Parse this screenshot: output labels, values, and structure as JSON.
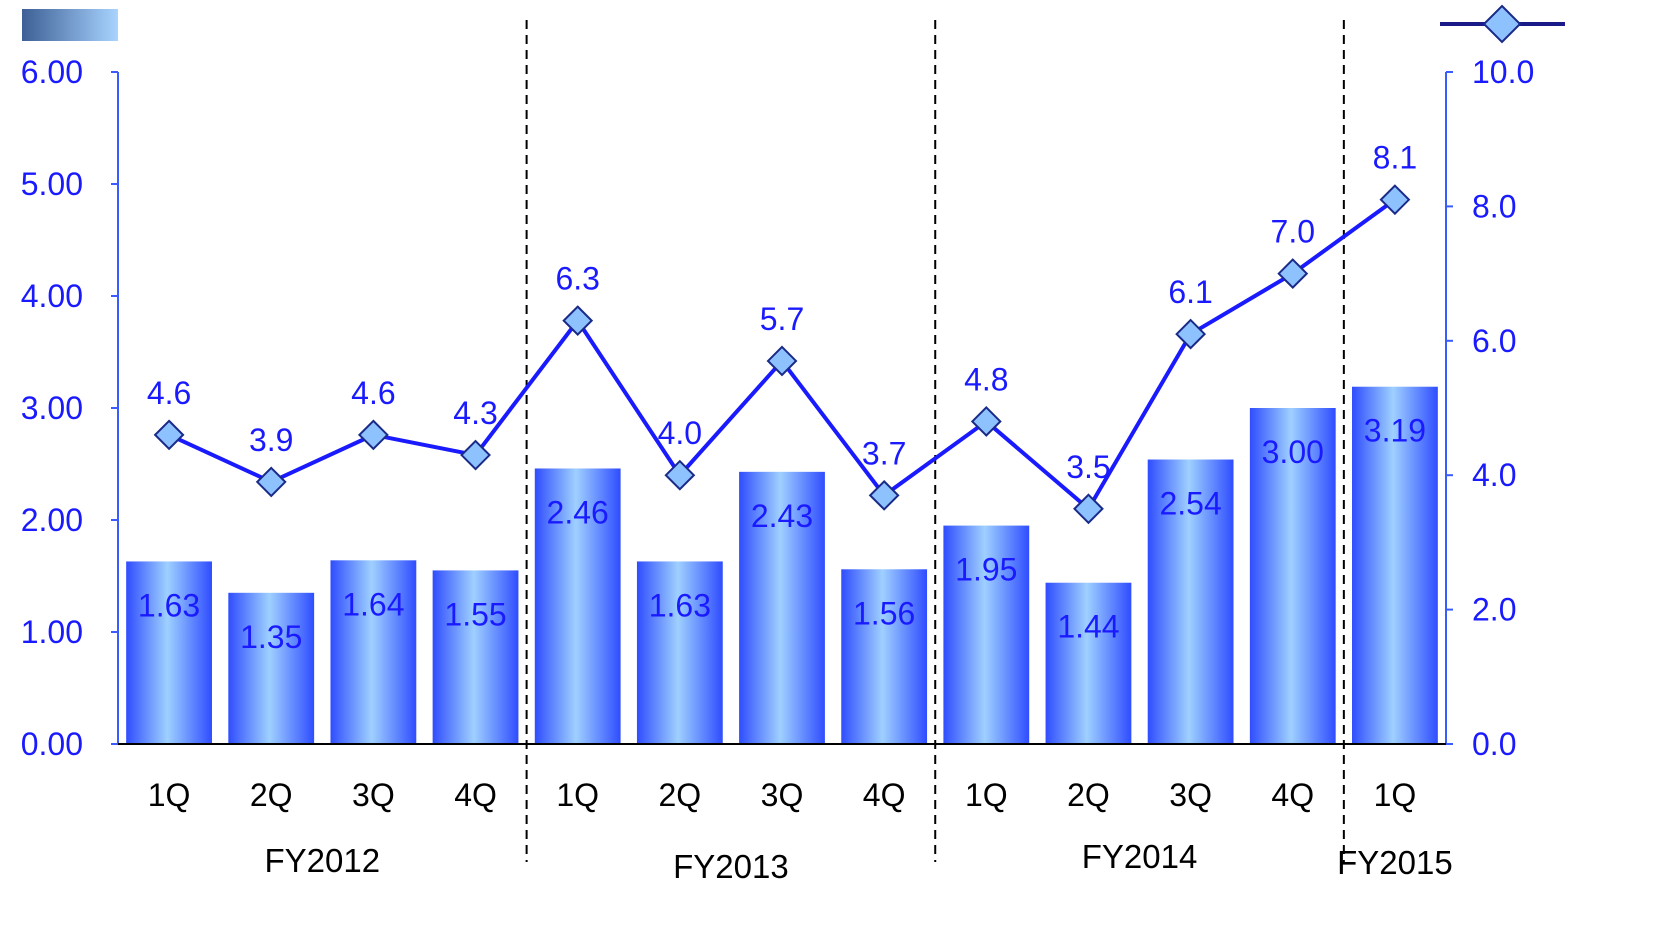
{
  "chart_data": {
    "type": "bar",
    "categories": [
      "1Q",
      "2Q",
      "3Q",
      "4Q",
      "1Q",
      "2Q",
      "3Q",
      "4Q",
      "1Q",
      "2Q",
      "3Q",
      "4Q",
      "1Q"
    ],
    "groups": [
      {
        "label": "FY2012",
        "start": 0,
        "end": 3
      },
      {
        "label": "FY2013",
        "start": 4,
        "end": 7
      },
      {
        "label": "FY2014",
        "start": 8,
        "end": 11
      },
      {
        "label": "FY2015",
        "start": 12,
        "end": 12
      }
    ],
    "series": [
      {
        "type": "bar",
        "axis": "left",
        "values": [
          1.63,
          1.35,
          1.64,
          1.55,
          2.46,
          1.63,
          2.43,
          1.56,
          1.95,
          1.44,
          2.54,
          3.0,
          3.19
        ],
        "labels": [
          "1.63",
          "1.35",
          "1.64",
          "1.55",
          "2.46",
          "1.63",
          "2.43",
          "1.56",
          "1.95",
          "1.44",
          "2.54",
          "3.00",
          "3.19"
        ],
        "color": "#3a5cff"
      },
      {
        "type": "line",
        "axis": "right",
        "values": [
          4.6,
          3.9,
          4.6,
          4.3,
          6.3,
          4.0,
          5.7,
          3.7,
          4.8,
          3.5,
          6.1,
          7.0,
          8.1
        ],
        "labels": [
          "4.6",
          "3.9",
          "4.6",
          "4.3",
          "6.3",
          "4.0",
          "5.7",
          "3.7",
          "4.8",
          "3.5",
          "6.1",
          "7.0",
          "8.1"
        ],
        "color": "#1a1aff",
        "marker": "diamond",
        "marker_color": "#8ec2ff"
      }
    ],
    "y_left": {
      "min": 0,
      "max": 6,
      "step": 1,
      "tick_labels": [
        "0.00",
        "1.00",
        "2.00",
        "3.00",
        "4.00",
        "5.00",
        "6.00"
      ]
    },
    "y_right": {
      "min": 0,
      "max": 10,
      "step": 2,
      "tick_labels": [
        "0.0",
        "2.0",
        "4.0",
        "6.0",
        "8.0",
        "10.0"
      ]
    },
    "legend": [
      {
        "series": 0,
        "placement": "top-left",
        "symbol": "bar-gradient"
      },
      {
        "series": 1,
        "placement": "top-right",
        "symbol": "line-diamond"
      }
    ],
    "grid": false,
    "group_separators": "dashed",
    "axis_color": "#3a5cff"
  }
}
